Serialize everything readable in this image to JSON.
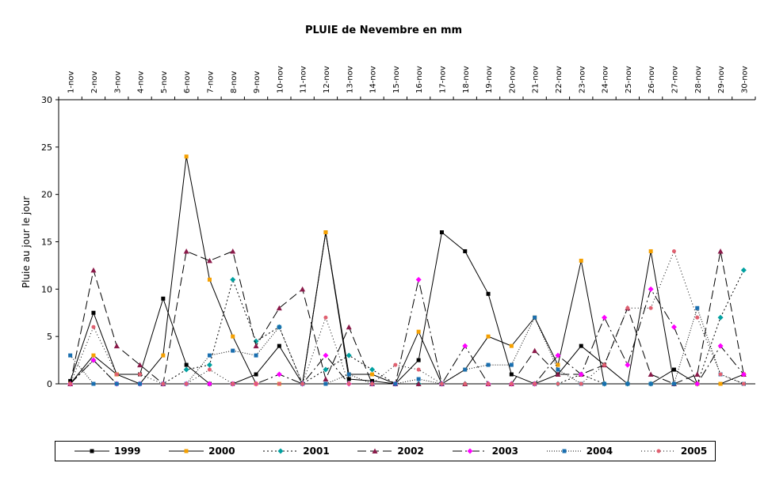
{
  "chart_data": {
    "type": "line",
    "title": "PLUIE de Nevembre en mm",
    "xlabel": "",
    "ylabel": "Pluie au jour le jour",
    "ylim": [
      0,
      30
    ],
    "yticks": [
      0,
      5,
      10,
      15,
      20,
      25,
      30
    ],
    "grid": false,
    "legend_position": "bottom",
    "categories": [
      "1-nov",
      "2-nov",
      "3-nov",
      "4-nov",
      "5-nov",
      "6-nov",
      "7-nov",
      "8-nov",
      "9-nov",
      "10-nov",
      "11-nov",
      "12-nov",
      "13-nov",
      "14-nov",
      "15-nov",
      "16-nov",
      "17-nov",
      "18-nov",
      "19-nov",
      "20-nov",
      "21-nov",
      "22-nov",
      "23-nov",
      "24-nov",
      "25-nov",
      "26-nov",
      "27-nov",
      "28-nov",
      "29-nov",
      "30-nov"
    ],
    "series": [
      {
        "name": "1999",
        "color": "#000000",
        "dash": "",
        "marker": "square",
        "values": [
          0.3,
          7.5,
          1,
          1,
          9,
          2,
          0,
          0,
          1,
          4,
          0,
          16,
          0.5,
          0.3,
          0,
          2.5,
          16,
          14,
          9.5,
          1,
          0,
          1,
          4,
          2,
          0,
          0,
          1.5,
          0,
          0,
          0
        ]
      },
      {
        "name": "2000",
        "color": "#f5a000",
        "dash": "",
        "marker": "square",
        "values": [
          0,
          3,
          1,
          0,
          3,
          24,
          11,
          5,
          0,
          0,
          0,
          16,
          1,
          1,
          0,
          5.5,
          0,
          1.5,
          5,
          4,
          7,
          2,
          13,
          0,
          0,
          14,
          0,
          0,
          0,
          1
        ]
      },
      {
        "name": "2001",
        "color": "#00a0a0",
        "dash": "2,3",
        "marker": "diamond",
        "values": [
          0,
          2.5,
          0,
          0,
          0,
          1.5,
          2,
          11,
          4.5,
          6,
          0,
          1.5,
          3,
          1.5,
          0,
          0,
          0,
          0,
          0,
          0,
          0,
          0,
          1,
          0,
          0,
          0,
          0,
          0,
          7,
          12
        ]
      },
      {
        "name": "2002",
        "color": "#8b1a4a",
        "dash": "11,5",
        "marker": "triangle",
        "values": [
          0,
          12,
          4,
          2,
          0,
          14,
          13,
          14,
          4,
          8,
          10,
          0.5,
          6,
          0,
          0,
          0,
          0,
          0,
          0,
          0,
          3.5,
          1,
          1,
          2,
          8,
          1,
          0,
          1,
          14,
          1
        ]
      },
      {
        "name": "2003",
        "color": "#ff00ff",
        "dash": "12,4,2,4",
        "marker": "diamond",
        "values": [
          0,
          2.5,
          0,
          0,
          0,
          0,
          0,
          0,
          0,
          1,
          0,
          3,
          0,
          0,
          0,
          11,
          0,
          4,
          0,
          0,
          0,
          3,
          1,
          7,
          2,
          10,
          6,
          0,
          4,
          1
        ]
      },
      {
        "name": "2004",
        "color": "#1a6fb0",
        "dash": "1,2",
        "marker": "square",
        "values": [
          3,
          0,
          0,
          0,
          0,
          0,
          3,
          3.5,
          3,
          6,
          0,
          0,
          1,
          0,
          0,
          0.5,
          0,
          1.5,
          2,
          2,
          7,
          1.5,
          0,
          0,
          0,
          0,
          0,
          8,
          1,
          0
        ]
      },
      {
        "name": "2005",
        "color": "#e06070",
        "dash": "1,3",
        "marker": "circle",
        "values": [
          0,
          6,
          1,
          1,
          0,
          0,
          1.5,
          0,
          0,
          0,
          0,
          7,
          0,
          0,
          2,
          1.5,
          0,
          0,
          0,
          0,
          0,
          0,
          0,
          2,
          8,
          8,
          14,
          7,
          1,
          0
        ]
      }
    ]
  }
}
